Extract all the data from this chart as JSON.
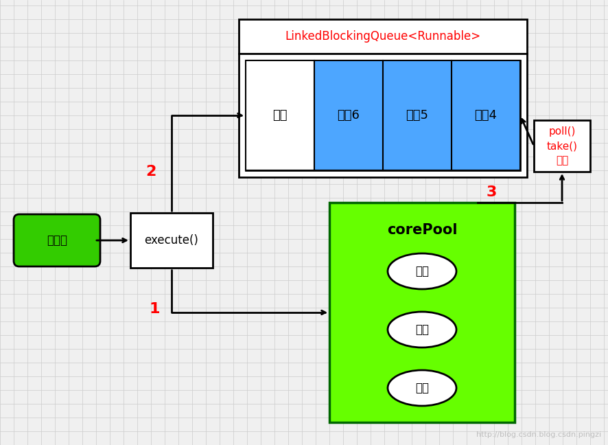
{
  "bg_color": "#f0f0f0",
  "grid_color": "#cccccc",
  "title_watermark": "http://blog.csdn.blog.csdn.pingzi",
  "main_thread_label": "主线程",
  "execute_label": "execute()",
  "queue_outer_label": "LinkedBlockingQueue<Runnable>",
  "queue_cells": [
    "空闲",
    "任务6",
    "任务5",
    "任务4"
  ],
  "queue_cell_colors": [
    "#ffffff",
    "#4da6ff",
    "#4da6ff",
    "#4da6ff"
  ],
  "core_pool_label": "corePool",
  "thread_label": "线程",
  "poll_label": "poll()\ntake()\n操作",
  "numbers": {
    "1": "1",
    "2": "2",
    "3": "3"
  },
  "number_color": "#ff0000",
  "poll_color": "#ff0000",
  "queue_title_color": "#ff0000",
  "green_dark": "#33cc00",
  "green_bright": "#66ff00",
  "blue_task": "#3399ff"
}
